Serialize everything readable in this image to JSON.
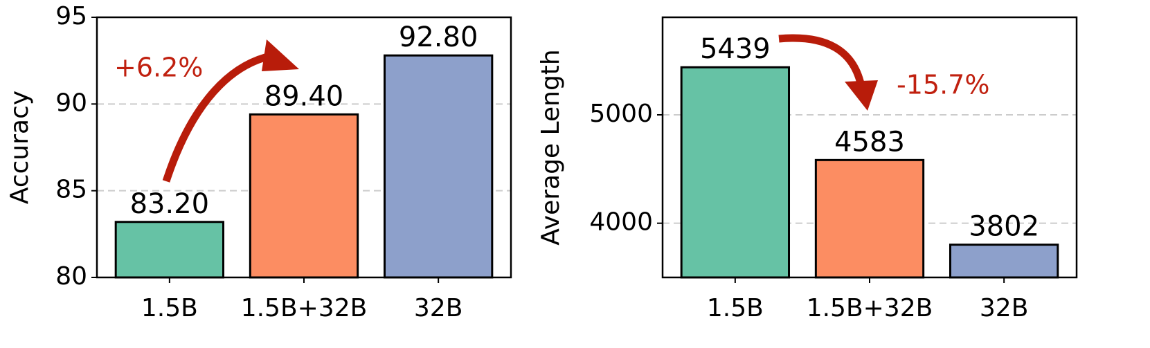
{
  "chart_data": [
    {
      "type": "bar",
      "y_label": "Accuracy",
      "categories": [
        "1.5B",
        "1.5B+32B",
        "32B"
      ],
      "values": [
        83.2,
        89.4,
        92.8
      ],
      "value_labels": [
        "83.20",
        "89.40",
        "92.80"
      ],
      "colors": [
        "#66c2a5",
        "#fc8d62",
        "#8da0cb"
      ],
      "ylim": [
        80,
        95
      ],
      "yticks": [
        80,
        85,
        90,
        95
      ],
      "grid": true,
      "annotation": "+6.2%"
    },
    {
      "type": "bar",
      "y_label": "Average Length",
      "categories": [
        "1.5B",
        "1.5B+32B",
        "32B"
      ],
      "values": [
        5439,
        4583,
        3802
      ],
      "colors": [
        "#66c2a5",
        "#fc8d62",
        "#8da0cb"
      ],
      "ylim": [
        3500,
        5900
      ],
      "yticks": [
        4000,
        5000
      ],
      "grid": true,
      "annotation": "-15.7%"
    }
  ]
}
